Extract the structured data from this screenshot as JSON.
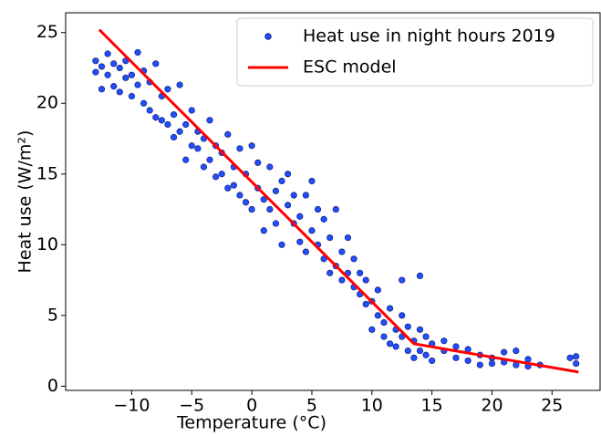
{
  "chart_data": {
    "type": "scatter",
    "xlabel": "Temperature (°C)",
    "ylabel": "Heat use (W/m²)",
    "xlim": [
      -15.5,
      29
    ],
    "ylim": [
      -0.3,
      26.4
    ],
    "xticks": [
      {
        "value": -10,
        "label": "−10"
      },
      {
        "value": -5,
        "label": "−5"
      },
      0,
      5,
      10,
      15,
      20,
      25
    ],
    "yticks": [
      0,
      5,
      10,
      15,
      20,
      25
    ],
    "grid": false,
    "legend": "upper right",
    "series": [
      {
        "name": "Heat use in night hours 2019",
        "type": "scatter",
        "color": "#1f4fff",
        "edgecolor": "#1a237e",
        "x": [
          -13,
          -13,
          -12.5,
          -12.5,
          -12,
          -12,
          -11.5,
          -11.5,
          -11,
          -11,
          -10.5,
          -10.5,
          -10,
          -10,
          -9.5,
          -9.5,
          -9,
          -9,
          -8.5,
          -8.5,
          -8,
          -8,
          -7.5,
          -7.5,
          -7,
          -7,
          -6.5,
          -6.5,
          -6,
          -6,
          -5.5,
          -5.5,
          -5,
          -5,
          -4.5,
          -4.5,
          -4,
          -4,
          -3.5,
          -3.5,
          -3,
          -3,
          -2.5,
          -2.5,
          -2,
          -2,
          -1.5,
          -1.5,
          -1,
          -1,
          -0.5,
          -0.5,
          0,
          0,
          0.5,
          0.5,
          1,
          1,
          1.5,
          1.5,
          2,
          2,
          2.5,
          2.5,
          3,
          3,
          3.5,
          3.5,
          4,
          4,
          4.5,
          4.5,
          5,
          5,
          5.5,
          5.5,
          6,
          6,
          6.5,
          6.5,
          7,
          7,
          7.5,
          7.5,
          8,
          8,
          8.5,
          8.5,
          9,
          9,
          9.5,
          9.5,
          10,
          10,
          10.5,
          10.5,
          11,
          11,
          11.5,
          11.5,
          12,
          12,
          12.5,
          12.5,
          13,
          13,
          13.5,
          13.5,
          14,
          14,
          14.5,
          14.5,
          15,
          15,
          16,
          16,
          17,
          17,
          18,
          18,
          19,
          19,
          20,
          20,
          21,
          21,
          22,
          22,
          23,
          23,
          24,
          26.5,
          27,
          27,
          14,
          12.5
        ],
        "values": [
          23.0,
          22.2,
          22.6,
          21.0,
          23.5,
          22.0,
          22.8,
          21.2,
          22.5,
          20.8,
          23.0,
          21.8,
          22.0,
          20.5,
          23.6,
          21.3,
          22.3,
          20.0,
          21.5,
          19.5,
          22.8,
          19.0,
          20.5,
          18.8,
          21.0,
          18.5,
          19.2,
          17.6,
          21.3,
          18.0,
          18.5,
          16.0,
          19.5,
          17.0,
          18.0,
          16.8,
          17.5,
          15.5,
          18.8,
          16.0,
          17.0,
          14.8,
          16.5,
          15.0,
          17.8,
          14.0,
          15.5,
          14.2,
          16.8,
          13.5,
          15.0,
          13.0,
          17.0,
          12.5,
          14.0,
          15.8,
          13.2,
          11.0,
          15.5,
          12.5,
          13.8,
          11.5,
          14.5,
          10.0,
          12.8,
          15.0,
          11.5,
          13.5,
          12.0,
          10.2,
          13.5,
          9.5,
          11.0,
          14.5,
          10.0,
          12.5,
          9.0,
          11.8,
          10.5,
          8.0,
          12.5,
          8.5,
          9.5,
          7.5,
          8.0,
          10.5,
          7.0,
          9.0,
          6.5,
          8.0,
          5.8,
          7.5,
          6.0,
          4.0,
          5.0,
          6.8,
          4.5,
          3.5,
          5.5,
          3.0,
          4.0,
          2.8,
          3.5,
          5.0,
          2.5,
          4.2,
          3.2,
          2.0,
          4.0,
          2.5,
          2.2,
          3.5,
          3.0,
          1.8,
          2.5,
          3.2,
          2.0,
          2.8,
          1.8,
          2.6,
          2.2,
          1.5,
          2.0,
          1.6,
          1.7,
          2.4,
          1.5,
          2.5,
          1.4,
          1.9,
          1.5,
          2.0,
          2.1,
          1.6,
          7.8,
          7.5
        ]
      },
      {
        "name": "ESC model",
        "type": "line",
        "color": "#ff0000",
        "x": [
          -12.7,
          13.5,
          27.2
        ],
        "values": [
          25.2,
          3.0,
          1.0
        ]
      }
    ]
  }
}
